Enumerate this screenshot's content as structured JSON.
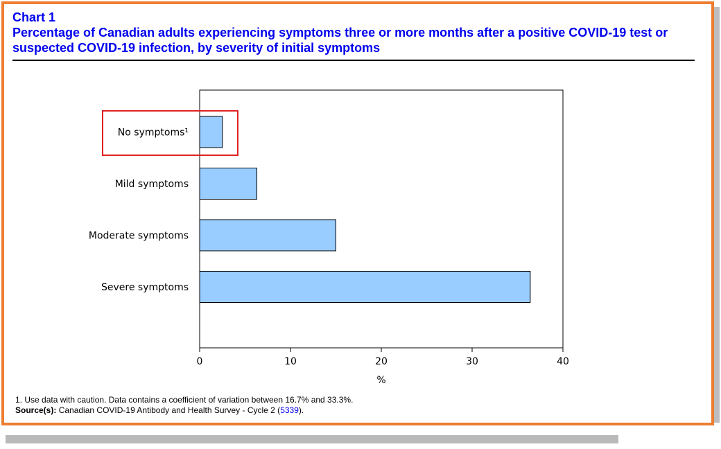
{
  "header": {
    "chart_label": "Chart 1",
    "title": "Percentage of Canadian adults experiencing symptoms three or more months after a positive COVID-19 test or suspected COVID-19 infection, by severity of initial symptoms"
  },
  "footer": {
    "note": "1. Use data with caution. Data contains a coefficient of variation between 16.7% and 33.3%.",
    "source_label": "Source(s):",
    "source_text": "Canadian COVID-19 Antibody and Health Survey - Cycle 2 (",
    "source_link": "5339",
    "source_end": ")."
  },
  "colors": {
    "frame_border": "#ed7d31",
    "title_text": "#0000ee",
    "bar_fill": "#99ccff",
    "bar_stroke": "#000000",
    "highlight_box": "#e02020"
  },
  "chart_data": {
    "type": "bar",
    "orientation": "horizontal",
    "categories": [
      "No symptoms¹",
      "Mild symptoms",
      "Moderate symptoms",
      "Severe symptoms"
    ],
    "values": [
      2.5,
      6.3,
      15.0,
      36.4
    ],
    "xlabel": "%",
    "ylabel": "",
    "xlim": [
      0,
      40
    ],
    "xticks": [
      "0",
      "10",
      "20",
      "30",
      "40"
    ],
    "grid": false,
    "highlighted_category": "No symptoms¹"
  }
}
